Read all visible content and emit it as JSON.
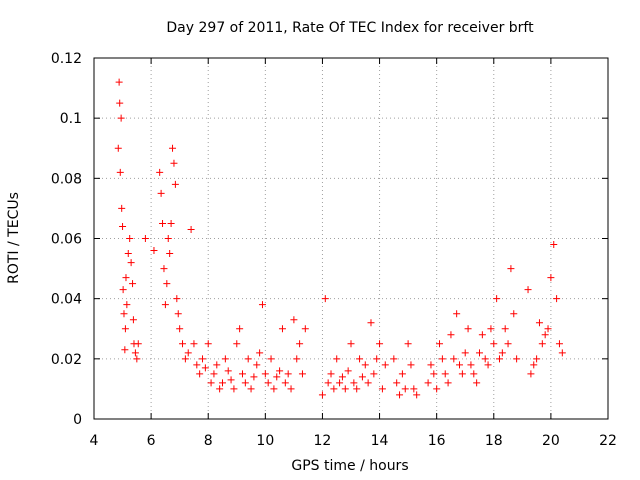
{
  "chart_data": {
    "type": "scatter",
    "title": "Day 297 of 2011, Rate Of TEC Index for receiver brft",
    "xlabel": "GPS time / hours",
    "ylabel": "ROTI / TECUs",
    "xlim": [
      4,
      22
    ],
    "ylim": [
      0,
      0.12
    ],
    "xticks": [
      4,
      6,
      8,
      10,
      12,
      14,
      16,
      18,
      20,
      22
    ],
    "xtick_labels": [
      "4",
      "6",
      "8",
      "10",
      "12",
      "14",
      "16",
      "18",
      "20",
      "22"
    ],
    "yticks": [
      0,
      0.02,
      0.04,
      0.06,
      0.08,
      0.1,
      0.12
    ],
    "ytick_labels": [
      "0",
      "0.02",
      "0.04",
      "0.06",
      "0.08",
      "0.1",
      "0.12"
    ],
    "grid": true,
    "marker": "+",
    "color": "#ff0000",
    "series": [
      {
        "name": "ROTI",
        "x": [
          4.85,
          4.88,
          4.9,
          4.92,
          4.95,
          4.97,
          5.0,
          5.02,
          5.05,
          5.08,
          5.1,
          5.12,
          5.15,
          5.2,
          5.25,
          5.3,
          5.35,
          5.38,
          5.4,
          5.45,
          5.5,
          5.55,
          5.8,
          6.1,
          6.3,
          6.35,
          6.4,
          6.45,
          6.5,
          6.55,
          6.6,
          6.65,
          6.7,
          6.75,
          6.8,
          6.85,
          6.9,
          6.95,
          7.0,
          7.1,
          7.2,
          7.3,
          7.4,
          7.5,
          7.6,
          7.7,
          7.8,
          7.9,
          8.0,
          8.1,
          8.2,
          8.3,
          8.4,
          8.5,
          8.6,
          8.7,
          8.8,
          8.9,
          9.0,
          9.1,
          9.2,
          9.3,
          9.4,
          9.5,
          9.6,
          9.7,
          9.8,
          9.9,
          10.0,
          10.1,
          10.2,
          10.3,
          10.4,
          10.5,
          10.6,
          10.7,
          10.8,
          10.9,
          11.0,
          11.1,
          11.2,
          11.3,
          11.4,
          12.0,
          12.1,
          12.2,
          12.3,
          12.4,
          12.5,
          12.6,
          12.7,
          12.8,
          12.9,
          13.0,
          13.1,
          13.2,
          13.3,
          13.4,
          13.5,
          13.6,
          13.7,
          13.8,
          13.9,
          14.0,
          14.1,
          14.2,
          14.5,
          14.6,
          14.7,
          14.8,
          14.9,
          15.0,
          15.1,
          15.2,
          15.3,
          15.7,
          15.8,
          15.9,
          16.0,
          16.1,
          16.2,
          16.3,
          16.4,
          16.5,
          16.6,
          16.7,
          16.8,
          16.9,
          17.0,
          17.1,
          17.2,
          17.3,
          17.4,
          17.5,
          17.6,
          17.7,
          17.8,
          17.9,
          18.0,
          18.1,
          18.2,
          18.3,
          18.4,
          18.5,
          18.6,
          18.7,
          18.8,
          19.2,
          19.3,
          19.4,
          19.5,
          19.6,
          19.7,
          19.8,
          19.9,
          20.0,
          20.1,
          20.2,
          20.3,
          20.4
        ],
        "y": [
          0.09,
          0.112,
          0.105,
          0.082,
          0.1,
          0.07,
          0.064,
          0.043,
          0.035,
          0.023,
          0.03,
          0.047,
          0.038,
          0.055,
          0.06,
          0.052,
          0.045,
          0.033,
          0.025,
          0.022,
          0.02,
          0.025,
          0.06,
          0.056,
          0.082,
          0.075,
          0.065,
          0.05,
          0.038,
          0.045,
          0.06,
          0.055,
          0.065,
          0.09,
          0.085,
          0.078,
          0.04,
          0.035,
          0.03,
          0.025,
          0.02,
          0.022,
          0.063,
          0.025,
          0.018,
          0.015,
          0.02,
          0.017,
          0.025,
          0.012,
          0.015,
          0.018,
          0.01,
          0.012,
          0.02,
          0.016,
          0.013,
          0.01,
          0.025,
          0.03,
          0.015,
          0.012,
          0.02,
          0.01,
          0.014,
          0.018,
          0.022,
          0.038,
          0.015,
          0.012,
          0.02,
          0.01,
          0.014,
          0.016,
          0.03,
          0.012,
          0.015,
          0.01,
          0.033,
          0.02,
          0.025,
          0.015,
          0.03,
          0.008,
          0.04,
          0.012,
          0.015,
          0.01,
          0.02,
          0.012,
          0.014,
          0.01,
          0.016,
          0.025,
          0.012,
          0.01,
          0.02,
          0.014,
          0.018,
          0.012,
          0.032,
          0.015,
          0.02,
          0.025,
          0.01,
          0.018,
          0.02,
          0.012,
          0.008,
          0.015,
          0.01,
          0.025,
          0.018,
          0.01,
          0.008,
          0.012,
          0.018,
          0.015,
          0.01,
          0.025,
          0.02,
          0.015,
          0.012,
          0.028,
          0.02,
          0.035,
          0.018,
          0.015,
          0.022,
          0.03,
          0.018,
          0.015,
          0.012,
          0.022,
          0.028,
          0.02,
          0.018,
          0.03,
          0.025,
          0.04,
          0.02,
          0.022,
          0.03,
          0.025,
          0.05,
          0.035,
          0.02,
          0.043,
          0.015,
          0.018,
          0.02,
          0.032,
          0.025,
          0.028,
          0.03,
          0.047,
          0.058,
          0.04,
          0.025,
          0.022
        ]
      }
    ]
  }
}
